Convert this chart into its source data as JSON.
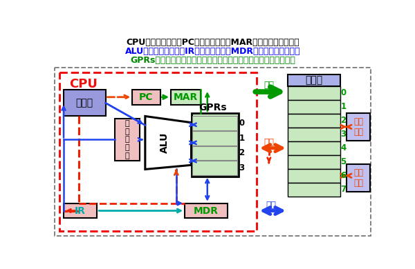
{
  "line1": "CPU：中央处理器；PC：程序计数器；MAR：存储器地址寄存器",
  "line2": "ALU：算术逻辑部件；IR：指令寄存器；MDR：存储器数据寄存器",
  "line3": "GPRs：通用寄存器组（由若干通用寄存器组成，早期就是累加器）",
  "col_l1": "#000000",
  "col_l2": "#0000ff",
  "col_l3": "#008800",
  "bg": "#ffffff",
  "col_outer": "#777777",
  "col_cpu_border": "#ee1111",
  "col_ctrl_fill": "#f0b8b8",
  "col_ctrl_edge": "#888888",
  "col_ctrl_hdr": "#9999dd",
  "col_pc_fill": "#f0c0c0",
  "col_mar_fill": "#c8e8c0",
  "col_flag_fill": "#f0c0c0",
  "col_gprs_fill": "#c8e8c0",
  "col_alu_fill": "#ffffff",
  "col_ir_fill": "#f0c0c0",
  "col_mdr_fill": "#f0c0c0",
  "col_mem_header": "#aab0e8",
  "col_mem_cell": "#c8e8c0",
  "col_io_fill": "#c0c0f0",
  "col_green": "#009900",
  "col_orange": "#ee4400",
  "col_blue": "#2244ee",
  "col_cyan": "#00aaaa",
  "col_red_dash": "#ee2200"
}
